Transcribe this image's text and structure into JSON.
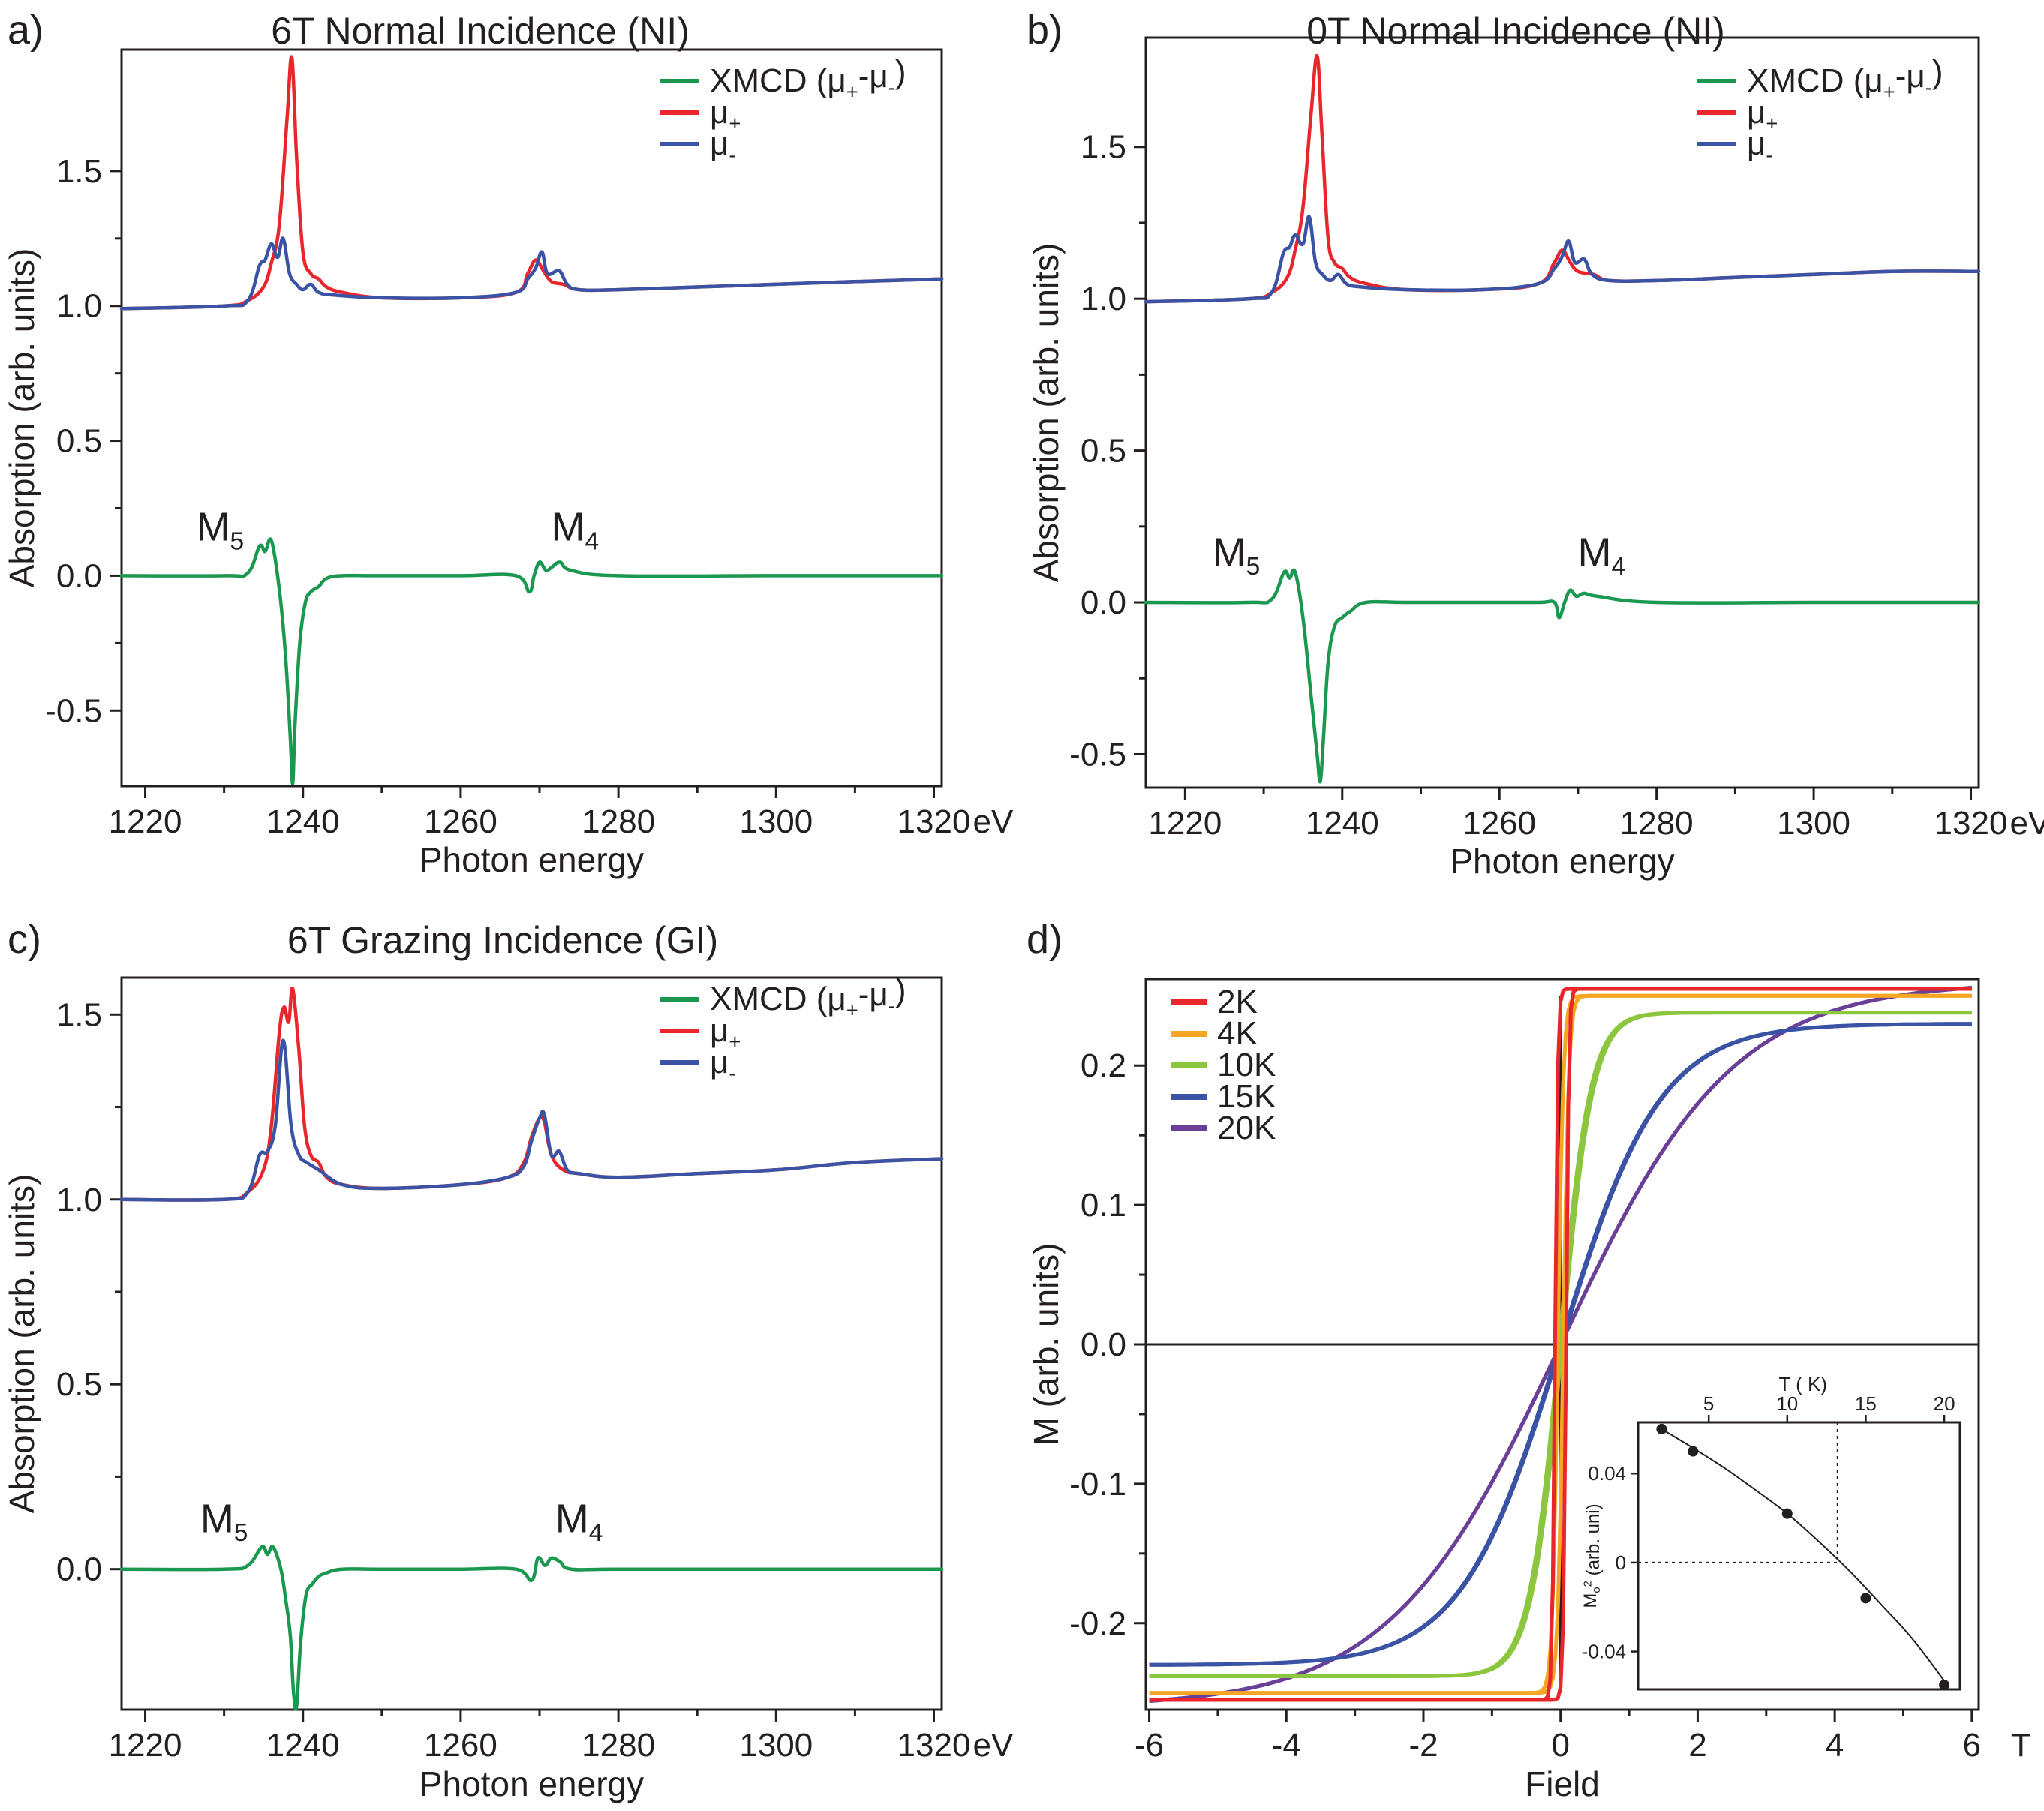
{
  "colors": {
    "xmcd": "#1a9850",
    "mu_plus": "#e8262b",
    "mu_minus": "#3a53a4",
    "k2": "#e8262b",
    "k4": "#f5a623",
    "k10": "#8cc63f",
    "k15": "#3a53a4",
    "k20": "#6a3f98",
    "axis": "#231f20"
  },
  "chart_data": [
    {
      "panel": "a)",
      "type": "line",
      "title": "6T Normal Incidence (NI)",
      "xlabel": "Photon energy",
      "ylabel": "Absorption (arb. units)",
      "x_unit": "eV",
      "xlim": [
        1217,
        1321
      ],
      "ylim": [
        -0.78,
        1.95
      ],
      "x_ticks": [
        1220,
        1240,
        1260,
        1280,
        1300,
        1320
      ],
      "y_ticks": [
        -0.5,
        0.0,
        0.5,
        1.0,
        1.5
      ],
      "x_tick_labels": [
        "1220",
        "1240",
        "1260",
        "1280",
        "1300",
        "1320"
      ],
      "y_tick_labels": [
        "-0.5",
        "0.0",
        "0.5",
        "1.0",
        "1.5"
      ],
      "legend": [
        "XMCD (μ₊-μ₋)",
        "μ₊",
        "μ₋"
      ],
      "legend_position": "top-right",
      "annotations": [
        {
          "text": "M₅",
          "x": 1229.5,
          "y": 0.13
        },
        {
          "text": "M₄",
          "x": 1274.5,
          "y": 0.13
        }
      ],
      "series": [
        {
          "name": "μ₊",
          "color_key": "mu_plus",
          "x": [
            1217,
            1230,
            1233,
            1235,
            1236,
            1237,
            1238,
            1238.6,
            1239.2,
            1240,
            1241,
            1242,
            1243,
            1245,
            1250,
            1260,
            1267,
            1268.5,
            1269.5,
            1270.5,
            1271.5,
            1273,
            1275,
            1280,
            1290,
            1300,
            1310,
            1321
          ],
          "y": [
            0.99,
            1.0,
            1.02,
            1.07,
            1.16,
            1.3,
            1.7,
            1.92,
            1.55,
            1.2,
            1.12,
            1.1,
            1.07,
            1.05,
            1.03,
            1.03,
            1.05,
            1.12,
            1.17,
            1.13,
            1.09,
            1.08,
            1.06,
            1.06,
            1.07,
            1.08,
            1.09,
            1.1
          ]
        },
        {
          "name": "μ₋",
          "color_key": "mu_minus",
          "x": [
            1217,
            1230,
            1233,
            1234.5,
            1235.2,
            1236,
            1236.8,
            1237.5,
            1238.3,
            1239.2,
            1240,
            1241,
            1242,
            1244,
            1250,
            1260,
            1267,
            1268.5,
            1269.5,
            1270.3,
            1271,
            1272.5,
            1273.5,
            1275,
            1280,
            1290,
            1300,
            1310,
            1321
          ],
          "y": [
            0.99,
            1.0,
            1.02,
            1.15,
            1.17,
            1.23,
            1.18,
            1.25,
            1.12,
            1.08,
            1.06,
            1.08,
            1.05,
            1.04,
            1.03,
            1.03,
            1.05,
            1.1,
            1.14,
            1.2,
            1.12,
            1.13,
            1.08,
            1.06,
            1.06,
            1.07,
            1.08,
            1.09,
            1.1
          ]
        },
        {
          "name": "XMCD (μ₊-μ₋)",
          "color_key": "xmcd",
          "x": [
            1217,
            1230,
            1233,
            1234.5,
            1235.2,
            1236,
            1237,
            1237.8,
            1238.4,
            1238.7,
            1239,
            1239.6,
            1240.3,
            1241,
            1242,
            1243,
            1245,
            1250,
            1260,
            1267,
            1268.7,
            1269.3,
            1270,
            1270.8,
            1271.5,
            1272.6,
            1274,
            1280,
            1300,
            1321
          ],
          "y": [
            0.0,
            0.0,
            0.01,
            0.11,
            0.09,
            0.13,
            -0.05,
            -0.3,
            -0.6,
            -0.77,
            -0.55,
            -0.25,
            -0.1,
            -0.06,
            -0.04,
            -0.01,
            0.0,
            0.0,
            0.0,
            0.0,
            -0.06,
            0.0,
            0.05,
            0.02,
            0.03,
            0.05,
            0.02,
            0.0,
            0.0,
            0.0
          ]
        }
      ]
    },
    {
      "panel": "b)",
      "type": "line",
      "title": "0T Normal Incidence (NI)",
      "xlabel": "Photon energy",
      "ylabel": "Absorption (arb. units)",
      "x_unit": "eV",
      "xlim": [
        1215,
        1321
      ],
      "ylim": [
        -0.61,
        1.86
      ],
      "x_ticks": [
        1220,
        1240,
        1260,
        1280,
        1300,
        1320
      ],
      "y_ticks": [
        -0.5,
        0.0,
        0.5,
        1.0,
        1.5
      ],
      "x_tick_labels": [
        "1220",
        "1240",
        "1260",
        "1280",
        "1300",
        "1320"
      ],
      "y_tick_labels": [
        "-0.5",
        "0.0",
        "0.5",
        "1.0",
        "1.5"
      ],
      "legend": [
        "XMCD (μ₊-μ₋)",
        "μ₊",
        "μ₋"
      ],
      "legend_position": "top-right",
      "annotations": [
        {
          "text": "M₅",
          "x": 1226.5,
          "y": 0.12
        },
        {
          "text": "M₄",
          "x": 1273,
          "y": 0.12
        }
      ],
      "series": [
        {
          "name": "μ₊",
          "color_key": "mu_plus",
          "x": [
            1215,
            1228,
            1231,
            1233,
            1234,
            1235,
            1236,
            1236.8,
            1237.4,
            1238.2,
            1239,
            1240,
            1241,
            1243,
            1248,
            1258,
            1265,
            1267,
            1268,
            1269,
            1270,
            1272,
            1274,
            1280,
            1290,
            1300,
            1310,
            1321
          ],
          "y": [
            0.99,
            1.0,
            1.02,
            1.07,
            1.16,
            1.3,
            1.6,
            1.8,
            1.55,
            1.2,
            1.12,
            1.1,
            1.07,
            1.05,
            1.03,
            1.03,
            1.05,
            1.12,
            1.16,
            1.12,
            1.09,
            1.08,
            1.06,
            1.06,
            1.07,
            1.08,
            1.09,
            1.09
          ]
        },
        {
          "name": "μ₋",
          "color_key": "mu_minus",
          "x": [
            1215,
            1228,
            1231,
            1232.5,
            1233.3,
            1234,
            1235,
            1235.8,
            1236.6,
            1237.5,
            1238.5,
            1239.5,
            1240.5,
            1242,
            1248,
            1258,
            1265,
            1267,
            1268,
            1268.8,
            1269.6,
            1270.8,
            1271.8,
            1274,
            1280,
            1290,
            1300,
            1310,
            1321
          ],
          "y": [
            0.99,
            1.0,
            1.02,
            1.15,
            1.17,
            1.21,
            1.18,
            1.27,
            1.12,
            1.08,
            1.06,
            1.08,
            1.05,
            1.04,
            1.03,
            1.03,
            1.05,
            1.1,
            1.14,
            1.19,
            1.12,
            1.13,
            1.08,
            1.06,
            1.06,
            1.07,
            1.08,
            1.09,
            1.09
          ]
        },
        {
          "name": "XMCD (μ₊-μ₋)",
          "color_key": "xmcd",
          "x": [
            1215,
            1228,
            1231,
            1232.6,
            1233.3,
            1234,
            1235,
            1236,
            1236.8,
            1237.2,
            1237.6,
            1238.2,
            1239,
            1240,
            1241,
            1243,
            1248,
            1258,
            1265,
            1267,
            1267.6,
            1268.3,
            1269,
            1269.8,
            1270.8,
            1272.5,
            1280,
            1300,
            1321
          ],
          "y": [
            0.0,
            0.0,
            0.01,
            0.1,
            0.08,
            0.1,
            -0.05,
            -0.3,
            -0.5,
            -0.59,
            -0.45,
            -0.2,
            -0.08,
            -0.05,
            -0.03,
            0.0,
            0.0,
            0.0,
            0.0,
            0.0,
            -0.05,
            0.0,
            0.04,
            0.02,
            0.03,
            0.02,
            0.0,
            0.0,
            0.0
          ]
        }
      ]
    },
    {
      "panel": "c)",
      "type": "line",
      "title": "6T Grazing Incidence (GI)",
      "xlabel": "Photon energy",
      "ylabel": "Absorption (arb. units)",
      "x_unit": "eV",
      "xlim": [
        1217,
        1321
      ],
      "ylim": [
        -0.38,
        1.6
      ],
      "x_ticks": [
        1220,
        1240,
        1260,
        1280,
        1300,
        1320
      ],
      "y_ticks": [
        0.0,
        0.5,
        1.0,
        1.5
      ],
      "x_tick_labels": [
        "1220",
        "1240",
        "1260",
        "1280",
        "1300",
        "1320"
      ],
      "y_tick_labels": [
        "0.0",
        "0.5",
        "1.0",
        "1.5"
      ],
      "legend": [
        "XMCD (μ₊-μ₋)",
        "μ₊",
        "μ₋"
      ],
      "legend_position": "top-right",
      "annotations": [
        {
          "text": "M₅",
          "x": 1230,
          "y": 0.1
        },
        {
          "text": "M₄",
          "x": 1275,
          "y": 0.1
        }
      ],
      "series": [
        {
          "name": "μ₊",
          "color_key": "mu_plus",
          "x": [
            1217,
            1230,
            1233,
            1235,
            1236,
            1237,
            1237.6,
            1238.2,
            1238.7,
            1239.5,
            1240.2,
            1241,
            1242,
            1243,
            1245,
            1250,
            1260,
            1266,
            1268,
            1269,
            1270,
            1270.6,
            1271.5,
            1273,
            1275,
            1280,
            1290,
            1300,
            1310,
            1321
          ],
          "y": [
            1.0,
            1.0,
            1.02,
            1.08,
            1.2,
            1.45,
            1.52,
            1.48,
            1.57,
            1.4,
            1.2,
            1.12,
            1.1,
            1.06,
            1.04,
            1.03,
            1.04,
            1.06,
            1.1,
            1.17,
            1.22,
            1.21,
            1.12,
            1.08,
            1.07,
            1.06,
            1.07,
            1.08,
            1.1,
            1.11
          ]
        },
        {
          "name": "μ₋",
          "color_key": "mu_minus",
          "x": [
            1217,
            1230,
            1233,
            1234.5,
            1235.5,
            1236.5,
            1237.5,
            1238.5,
            1239.5,
            1240.5,
            1242,
            1245,
            1250,
            1260,
            1266,
            1268,
            1269,
            1270,
            1270.6,
            1271.5,
            1272.5,
            1273.5,
            1275,
            1280,
            1290,
            1300,
            1310,
            1321
          ],
          "y": [
            1.0,
            1.0,
            1.02,
            1.12,
            1.13,
            1.2,
            1.43,
            1.2,
            1.12,
            1.1,
            1.08,
            1.04,
            1.03,
            1.04,
            1.06,
            1.09,
            1.16,
            1.22,
            1.23,
            1.12,
            1.13,
            1.08,
            1.07,
            1.06,
            1.07,
            1.08,
            1.1,
            1.11
          ]
        },
        {
          "name": "XMCD (μ₊-μ₋)",
          "color_key": "xmcd",
          "x": [
            1217,
            1230,
            1233,
            1234.8,
            1235.5,
            1236.2,
            1237.2,
            1237.8,
            1238.4,
            1238.8,
            1239.2,
            1239.7,
            1240.4,
            1241.2,
            1242,
            1243,
            1245,
            1250,
            1260,
            1267,
            1269,
            1269.8,
            1270.7,
            1271.5,
            1272.6,
            1274,
            1280,
            1300,
            1321
          ],
          "y": [
            0.0,
            0.0,
            0.01,
            0.06,
            0.04,
            0.06,
            0.0,
            -0.08,
            -0.18,
            -0.33,
            -0.37,
            -0.2,
            -0.07,
            -0.04,
            -0.02,
            -0.01,
            0.0,
            0.0,
            0.0,
            0.0,
            -0.03,
            0.03,
            0.01,
            0.03,
            0.02,
            0.0,
            0.0,
            0.0,
            0.0
          ]
        }
      ]
    },
    {
      "panel": "d)",
      "type": "line",
      "title": "",
      "xlabel": "Field",
      "ylabel": "M (arb. units)",
      "x_unit": "T",
      "xlim": [
        -6.05,
        6.1
      ],
      "ylim": [
        -0.262,
        0.262
      ],
      "x_ticks": [
        -6,
        -4,
        -2,
        0,
        2,
        4,
        6
      ],
      "y_ticks": [
        -0.2,
        -0.1,
        0.0,
        0.1,
        0.2
      ],
      "x_tick_labels": [
        "-6",
        "-4",
        "-2",
        "0",
        "2",
        "4",
        "6"
      ],
      "y_tick_labels": [
        "-0.2",
        "-0.1",
        "0.0",
        "0.1",
        "0.2"
      ],
      "legend": [
        "2K",
        "4K",
        "10K",
        "15K",
        "20K"
      ],
      "legend_position": "top-left",
      "series": [
        {
          "name": "2K",
          "color_key": "k2",
          "Ms": 0.255,
          "Hc": 0.08,
          "w": 0.04
        },
        {
          "name": "4K",
          "color_key": "k4",
          "Ms": 0.25,
          "Hc": 0.04,
          "w": 0.08
        },
        {
          "name": "10K",
          "color_key": "k10",
          "Ms": 0.238,
          "Hc": 0.02,
          "w": 0.45
        },
        {
          "name": "15K",
          "color_key": "k15",
          "Ms": 0.23,
          "Hc": 0.01,
          "w": 1.45
        },
        {
          "name": "20K",
          "color_key": "k20",
          "Ms": 0.26,
          "Hc": 0.0,
          "w": 2.5
        }
      ],
      "inset": {
        "type": "scatter",
        "xlabel": "T ( K)",
        "ylabel": "M₀² (arb. uni)",
        "xlim": [
          0.5,
          21
        ],
        "ylim": [
          -0.057,
          0.063
        ],
        "x_ticks": [
          5,
          10,
          15,
          20
        ],
        "y_ticks": [
          -0.04,
          0,
          0.04
        ],
        "x_tick_labels": [
          "5",
          "10",
          "15",
          "20"
        ],
        "y_tick_labels": [
          "-0.04",
          "0",
          "0.04"
        ],
        "x": [
          2,
          4,
          10,
          15,
          20
        ],
        "y": [
          0.06,
          0.05,
          0.022,
          -0.016,
          -0.055
        ],
        "fit_x": [
          2,
          4,
          6,
          8,
          10,
          12,
          14,
          16,
          18,
          20.3
        ],
        "fit_y": [
          0.06,
          0.0515,
          0.0425,
          0.0325,
          0.022,
          0.0095,
          -0.004,
          -0.019,
          -0.0345,
          -0.056
        ],
        "crossing_T": 13.2
      }
    }
  ]
}
